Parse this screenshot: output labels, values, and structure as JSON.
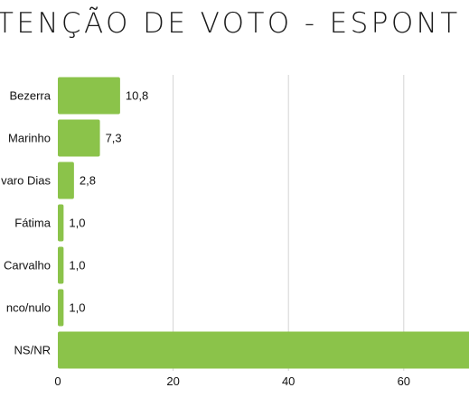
{
  "chart_data": {
    "type": "bar",
    "orientation": "horizontal",
    "title": "TENÇÃO DE VOTO - ESPONT",
    "categories": [
      "Bezerra",
      "Marinho",
      "varo Dias",
      "Fátima",
      "Carvalho",
      "nco/nulo",
      "NS/NR"
    ],
    "values": [
      10.8,
      7.3,
      2.8,
      1.0,
      1.0,
      1.0,
      72
    ],
    "value_labels": [
      "10,8",
      "7,3",
      "2,8",
      "1,0",
      "1,0",
      "1,0",
      ""
    ],
    "x_ticks": [
      "0",
      "20",
      "40",
      "60"
    ],
    "xlim": [
      0,
      72
    ],
    "grid": true,
    "xlabel": "",
    "ylabel": "",
    "bar_color": "#8bc34a"
  }
}
